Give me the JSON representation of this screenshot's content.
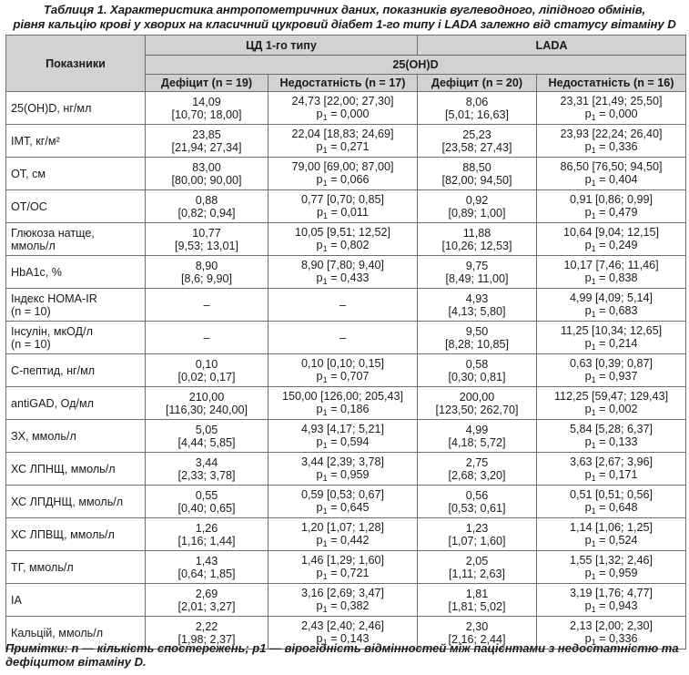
{
  "caption": {
    "line1": "Таблиця 1. Характеристика антропометричних даних, показників вуглеводного, ліпідного обмінів,",
    "line2": "рівня кальцію крові у хворих на класичний цукровий діабет 1-го типу і LADA залежно від статусу вітаміну D"
  },
  "header": {
    "col_indicators": "Показники",
    "group_cd1": "ЦД 1-го типу",
    "group_lada": "LADA",
    "subgroup": "25(OH)D",
    "columns": [
      "Дефіцит (n = 19)",
      "Недостатність (n = 17)",
      "Дефіцит (n = 20)",
      "Недостатність (n = 16)"
    ]
  },
  "rows": [
    {
      "label": "25(OH)D, нг/мл",
      "label2": "",
      "c1": {
        "l1": "14,09",
        "l2": "[10,70; 18,00]"
      },
      "c2": {
        "l1": "24,73 [22,00; 27,30]",
        "p": "0,000"
      },
      "c3": {
        "l1": "8,06",
        "l2": "[5,01; 16,63]"
      },
      "c4": {
        "l1": "23,31 [21,49; 25,50]",
        "p": "0,000"
      }
    },
    {
      "label": "ІМТ, кг/м²",
      "label2": "",
      "c1": {
        "l1": "23,85",
        "l2": "[21,94; 27,34]"
      },
      "c2": {
        "l1": "22,04 [18,83; 24,69]",
        "p": "0,271"
      },
      "c3": {
        "l1": "25,23",
        "l2": "[23,58; 27,43]"
      },
      "c4": {
        "l1": "23,93 [22,24; 26,40]",
        "p": "0,336"
      }
    },
    {
      "label": "ОТ, см",
      "label2": "",
      "c1": {
        "l1": "83,00",
        "l2": "[80,00; 90,00]"
      },
      "c2": {
        "l1": "79,00 [69,00; 87,00]",
        "p": "0,066"
      },
      "c3": {
        "l1": "88,50",
        "l2": "[82,00; 94,50]"
      },
      "c4": {
        "l1": "86,50 [76,50; 94,50]",
        "p": "0,404"
      }
    },
    {
      "label": "ОТ/ОС",
      "label2": "",
      "c1": {
        "l1": "0,88",
        "l2": "[0,82; 0,94]"
      },
      "c2": {
        "l1": "0,77 [0,70; 0,85]",
        "p": "0,011"
      },
      "c3": {
        "l1": "0,92",
        "l2": "[0,89; 1,00]"
      },
      "c4": {
        "l1": "0,91 [0,86; 0,99]",
        "p": "0,479"
      }
    },
    {
      "label": "Глюкоза натще,",
      "label2": "ммоль/л",
      "c1": {
        "l1": "10,77",
        "l2": "[9,53; 13,01]"
      },
      "c2": {
        "l1": "10,05 [9,51; 12,52]",
        "p": "0,802"
      },
      "c3": {
        "l1": "11,88",
        "l2": "[10,26; 12,53]"
      },
      "c4": {
        "l1": "10,64 [9,04; 12,15]",
        "p": "0,249"
      }
    },
    {
      "label": "HbA1c, %",
      "label2": "",
      "c1": {
        "l1": "8,90",
        "l2": "[8,6; 9,90]"
      },
      "c2": {
        "l1": "8,90 [7,80; 9,40]",
        "p": "0,433"
      },
      "c3": {
        "l1": "9,75",
        "l2": "[8,49; 11,00]"
      },
      "c4": {
        "l1": "10,17 [7,46; 11,46]",
        "p": "0,838"
      }
    },
    {
      "label": "Індекс HOMA-IR",
      "label2": "(n = 10)",
      "c1": {
        "l1": "–",
        "l2": ""
      },
      "c2": {
        "l1": "–",
        "p": ""
      },
      "c3": {
        "l1": "4,93",
        "l2": "[4,13; 5,80]"
      },
      "c4": {
        "l1": "4,99 [4,09; 5,14]",
        "p": "0,683"
      }
    },
    {
      "label": "Інсулін, мкОД/л",
      "label2": "(n = 10)",
      "c1": {
        "l1": "–",
        "l2": ""
      },
      "c2": {
        "l1": "–",
        "p": ""
      },
      "c3": {
        "l1": "9,50",
        "l2": "[8,28; 10,85]"
      },
      "c4": {
        "l1": "11,25 [10,34; 12,65]",
        "p": "0,214"
      }
    },
    {
      "label": "С-пептид, нг/мл",
      "label2": "",
      "c1": {
        "l1": "0,10",
        "l2": "[0,02; 0,17]"
      },
      "c2": {
        "l1": "0,10 [0,10; 0,15]",
        "p": "0,707"
      },
      "c3": {
        "l1": "0,58",
        "l2": "[0,30; 0,81]"
      },
      "c4": {
        "l1": "0,63 [0,39; 0,87]",
        "p": "0,937"
      }
    },
    {
      "label": "antiGAD, Од/мл",
      "label2": "",
      "c1": {
        "l1": "210,00",
        "l2": "[116,30; 240,00]"
      },
      "c2": {
        "l1": "150,00 [126,00; 205,43]",
        "p": "0,186"
      },
      "c3": {
        "l1": "200,00",
        "l2": "[123,50; 262,70]"
      },
      "c4": {
        "l1": "112,25 [59,47; 129,43]",
        "p": "0,002"
      }
    },
    {
      "label": "ЗХ, ммоль/л",
      "label2": "",
      "c1": {
        "l1": "5,05",
        "l2": "[4,44; 5,85]"
      },
      "c2": {
        "l1": "4,93 [4,17; 5,21]",
        "p": "0,594"
      },
      "c3": {
        "l1": "4,99",
        "l2": "[4,18; 5,72]"
      },
      "c4": {
        "l1": "5,84 [5,28; 6,37]",
        "p": "0,133"
      }
    },
    {
      "label": "ХС ЛПНЩ, ммоль/л",
      "label2": "",
      "c1": {
        "l1": "3,44",
        "l2": "[2,33; 3,78]"
      },
      "c2": {
        "l1": "3,44 [2,39; 3,78]",
        "p": "0,959"
      },
      "c3": {
        "l1": "2,75",
        "l2": "[2,68; 3,20]"
      },
      "c4": {
        "l1": "3,63 [2,67; 3,96]",
        "p": "0,171"
      }
    },
    {
      "label": "ХС ЛПДНЩ, ммоль/л",
      "label2": "",
      "c1": {
        "l1": "0,55",
        "l2": "[0,40; 0,65]"
      },
      "c2": {
        "l1": "0,59 [0,53; 0,67]",
        "p": "0,645"
      },
      "c3": {
        "l1": "0,56",
        "l2": "[0,53; 0,61]"
      },
      "c4": {
        "l1": "0,51 [0,51; 0,56]",
        "p": "0,648"
      }
    },
    {
      "label": "ХС ЛПВЩ, ммоль/л",
      "label2": "",
      "c1": {
        "l1": "1,26",
        "l2": "[1,16; 1,44]"
      },
      "c2": {
        "l1": "1,20 [1,07; 1,28]",
        "p": "0,442"
      },
      "c3": {
        "l1": "1,23",
        "l2": "[1,07; 1,60]"
      },
      "c4": {
        "l1": "1,14 [1,06; 1,25]",
        "p": "0,524"
      }
    },
    {
      "label": "ТГ, ммоль/л",
      "label2": "",
      "c1": {
        "l1": "1,43",
        "l2": "[0,64; 1,85]"
      },
      "c2": {
        "l1": "1,46 [1,29; 1,60]",
        "p": "0,721"
      },
      "c3": {
        "l1": "2,05",
        "l2": "[1,11; 2,63]"
      },
      "c4": {
        "l1": "1,55 [1,32; 2,46]",
        "p": "0,959"
      }
    },
    {
      "label": "ІА",
      "label2": "",
      "c1": {
        "l1": "2,69",
        "l2": "[2,01; 3,27]"
      },
      "c2": {
        "l1": "3,16 [2,69; 3,47]",
        "p": "0,382"
      },
      "c3": {
        "l1": "1,81",
        "l2": "[1,81; 5,02]"
      },
      "c4": {
        "l1": "3,19 [1,76; 4,77]",
        "p": "0,943"
      }
    },
    {
      "label": "Кальцій, ммоль/л",
      "label2": "",
      "c1": {
        "l1": "2,22",
        "l2": "[1,98; 2,37]"
      },
      "c2": {
        "l1": "2,43 [2,40; 2,46]",
        "p": "0,143"
      },
      "c3": {
        "l1": "2,30",
        "l2": "[2,16; 2,44]"
      },
      "c4": {
        "l1": "2,13 [2,00; 2,30]",
        "p": "0,336"
      }
    }
  ],
  "p_symbol": "p",
  "p_subscript": "1",
  "p_eq": " = ",
  "note": "Примітки: n — кількість спостережень; p1 — вірогідність відмінностей між пацієнтами з недостатністю та дефіцитом вітаміну D.",
  "style": {
    "header_bg": "#d2d2d2",
    "border": "#6e6e6e"
  }
}
